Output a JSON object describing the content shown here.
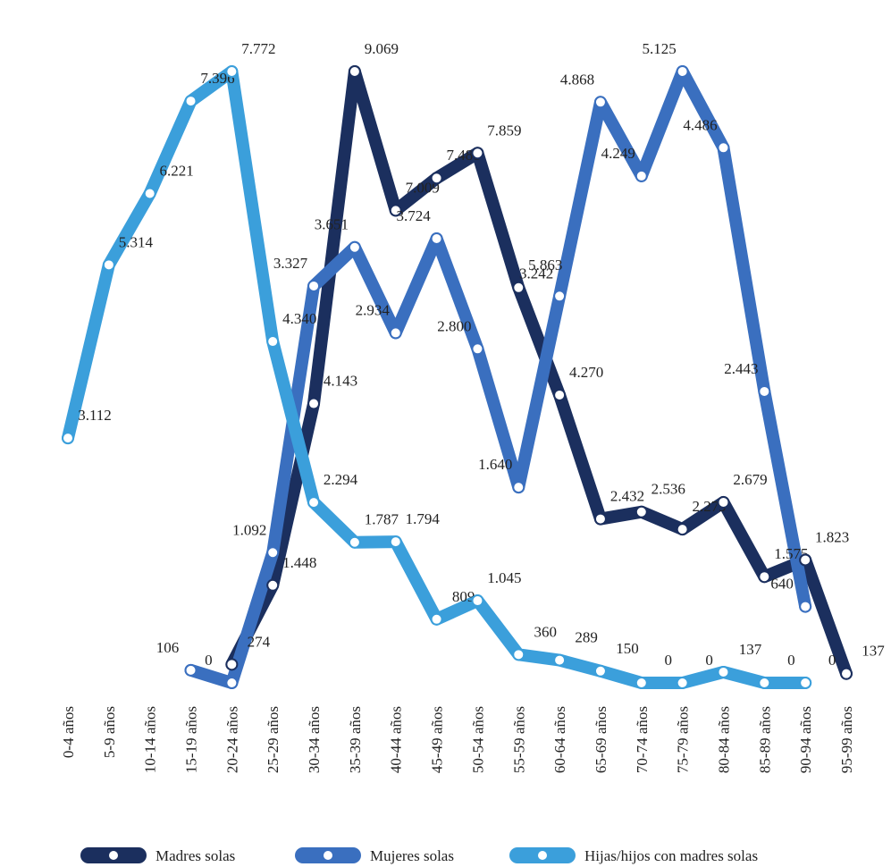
{
  "chart_data": {
    "type": "line",
    "categories": [
      "0-4 años",
      "5-9 años",
      "10-14 años",
      "15-19 años",
      "20-24 años",
      "25-29 años",
      "30-34 años",
      "35-39 años",
      "40-44 años",
      "45-49 años",
      "50-54 años",
      "55-59 años",
      "60-64 años",
      "65-69 años",
      "70-74 años",
      "75-79 años",
      "80-84 años",
      "85-89 años",
      "90-94 años",
      "95-99 años"
    ],
    "series": [
      {
        "name": "Madres solas",
        "color": "#1b2f5e",
        "values": [
          null,
          null,
          null,
          null,
          274,
          1448,
          4143,
          9069,
          7009,
          7488,
          7859,
          5863,
          4270,
          2432,
          2536,
          2279,
          2679,
          1575,
          1823,
          137
        ],
        "value_labels": [
          null,
          null,
          null,
          null,
          "274",
          "1.448",
          "4.143",
          "9.069",
          "7.009",
          "7.488",
          "7.859",
          "5.863",
          "4.270",
          "2.432",
          "2.536",
          "2.279",
          "2.679",
          "1.575",
          "1.823",
          "137"
        ]
      },
      {
        "name": "Mujeres solas",
        "color": "#3a6fbf",
        "values": [
          null,
          null,
          null,
          106,
          0,
          1092,
          3327,
          3651,
          2934,
          3724,
          2800,
          1640,
          3242,
          4868,
          4249,
          5125,
          4486,
          2443,
          640,
          null
        ],
        "value_labels": [
          null,
          null,
          null,
          "106",
          "0",
          "1.092",
          "3.327",
          "3.651",
          "2.934",
          "3.724",
          "2.800",
          "1.640",
          "3.242",
          "4.868",
          "4.249",
          "5.125",
          "4.486",
          "2.443",
          "640",
          null
        ]
      },
      {
        "name": "Hijas/hijos con madres solas",
        "color": "#3b9fdb",
        "values": [
          3112,
          5314,
          6221,
          7396,
          7772,
          4340,
          2294,
          1787,
          1794,
          809,
          1045,
          360,
          289,
          150,
          0,
          0,
          137,
          0,
          0,
          null
        ],
        "value_labels": [
          "3.112",
          "5.314",
          "6.221",
          "7.396",
          "7.772",
          "4.340",
          "2.294",
          "1.787",
          "1.794",
          "809",
          "1.045",
          "360",
          "289",
          "150",
          "0",
          "0",
          "137",
          "0",
          "0",
          null
        ]
      }
    ]
  }
}
